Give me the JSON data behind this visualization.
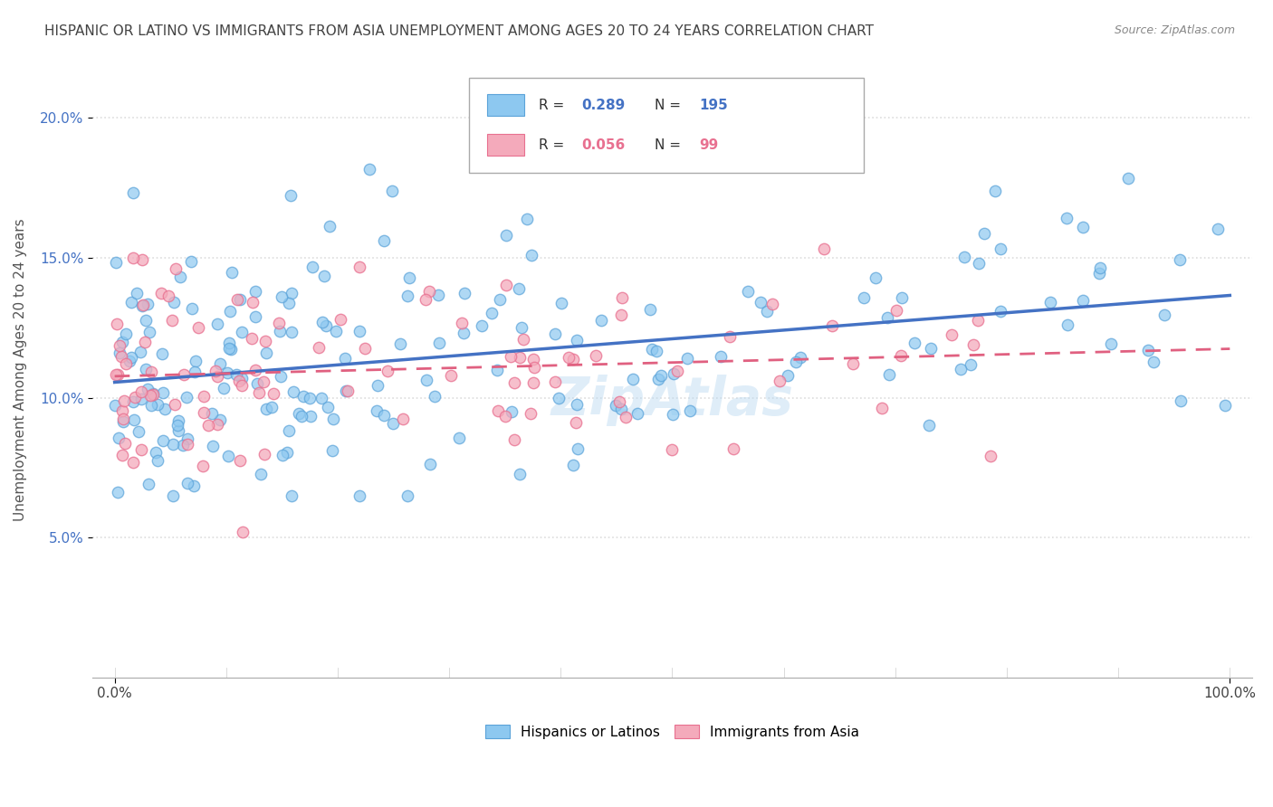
{
  "title": "HISPANIC OR LATINO VS IMMIGRANTS FROM ASIA UNEMPLOYMENT AMONG AGES 20 TO 24 YEARS CORRELATION CHART",
  "source": "Source: ZipAtlas.com",
  "ylabel": "Unemployment Among Ages 20 to 24 years",
  "xlim": [
    -2,
    102
  ],
  "ylim": [
    0,
    22
  ],
  "xtick_vals": [
    0,
    100
  ],
  "xtick_labels": [
    "0.0%",
    "100.0%"
  ],
  "ytick_vals": [
    5,
    10,
    15,
    20
  ],
  "ytick_labels": [
    "5.0%",
    "10.0%",
    "15.0%",
    "20.0%"
  ],
  "blue_R": 0.289,
  "blue_N": 195,
  "pink_R": 0.056,
  "pink_N": 99,
  "blue_color": "#8DC8F0",
  "pink_color": "#F4AABB",
  "blue_edge_color": "#5BA3D9",
  "pink_edge_color": "#E87090",
  "blue_line_color": "#4472C4",
  "pink_line_color": "#E06080",
  "watermark": "ZipAtlas",
  "legend1_label": "Hispanics or Latinos",
  "legend2_label": "Immigrants from Asia",
  "title_color": "#444444",
  "source_color": "#888888",
  "ylabel_color": "#555555",
  "ytick_color": "#4472C4",
  "xtick_color": "#444444",
  "grid_color": "#dddddd",
  "legend_box_color": "#aaaaaa"
}
